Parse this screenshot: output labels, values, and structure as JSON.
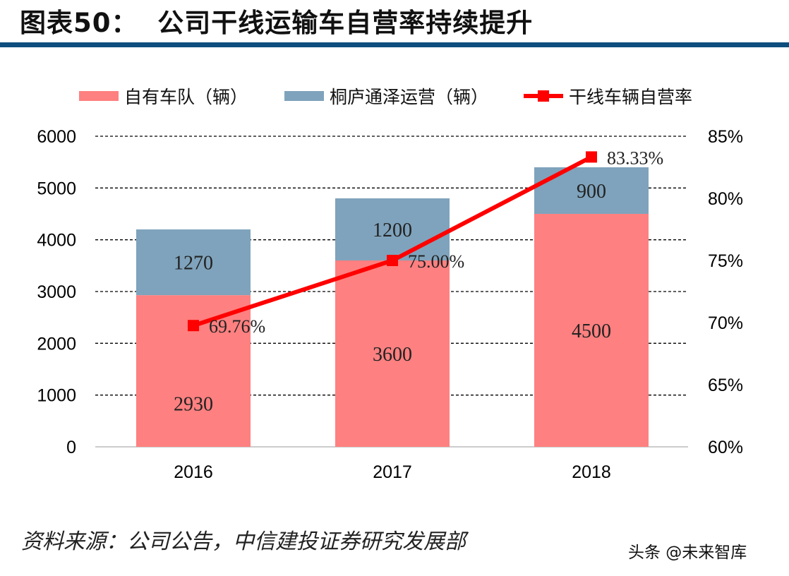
{
  "header": {
    "title": "图表50：  公司干线运输车自营率持续提升"
  },
  "footer": {
    "source": "资料来源：公司公告，中信建投证券研究发展部",
    "watermark": "头条 @未来智库"
  },
  "chart_data": {
    "type": "bar",
    "stacked": true,
    "title": "",
    "categories": [
      "2016",
      "2017",
      "2018"
    ],
    "series": [
      {
        "name": "自有车队（辆）",
        "type": "bar",
        "axis": "left",
        "color": "#ff8080",
        "values": [
          2930,
          3600,
          4500
        ],
        "labels": [
          "2930",
          "3600",
          "4500"
        ]
      },
      {
        "name": "桐庐通泽运营（辆）",
        "type": "bar",
        "axis": "left",
        "color": "#7fa3bc",
        "values": [
          1270,
          1200,
          900
        ],
        "labels": [
          "1270",
          "1200",
          "900"
        ]
      },
      {
        "name": "干线车辆自营率",
        "type": "line",
        "axis": "right",
        "color": "#ff0000",
        "values": [
          69.76,
          75.0,
          83.33
        ],
        "labels": [
          "69.76%",
          "75.00%",
          "83.33%"
        ]
      }
    ],
    "yleft": {
      "lim": [
        0,
        6000
      ],
      "ticks": [
        "0",
        "1000",
        "2000",
        "3000",
        "4000",
        "5000",
        "6000"
      ]
    },
    "yright": {
      "lim": [
        60,
        85
      ],
      "ticks": [
        "60%",
        "65%",
        "70%",
        "75%",
        "80%",
        "85%"
      ]
    },
    "grid": "dashed horizontal",
    "legend": "top"
  }
}
